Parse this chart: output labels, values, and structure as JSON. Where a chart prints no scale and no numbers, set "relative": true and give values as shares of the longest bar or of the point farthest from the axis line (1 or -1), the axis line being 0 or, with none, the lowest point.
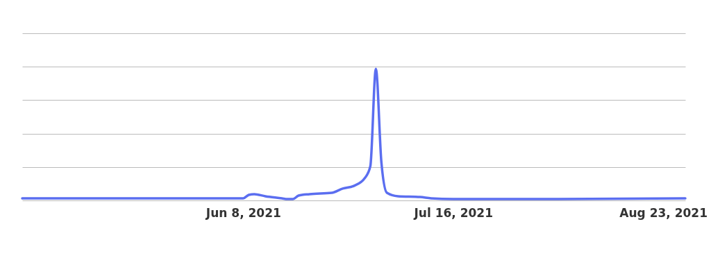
{
  "chart_data": {
    "type": "line",
    "relative": true,
    "grid": "y",
    "xlim": [
      "2021-04-29",
      "2021-08-27"
    ],
    "xticks": [
      {
        "value": "2021-06-08",
        "label": "Jun 8, 2021"
      },
      {
        "value": "2021-07-16",
        "label": "Jul 16, 2021"
      },
      {
        "value": "2021-08-23",
        "label": "Aug 23, 2021"
      }
    ],
    "x": [
      "2021-04-29",
      "2021-06-08",
      "2021-06-09",
      "2021-06-10",
      "2021-06-12",
      "2021-06-15",
      "2021-06-16",
      "2021-06-17",
      "2021-06-18",
      "2021-06-20",
      "2021-06-24",
      "2021-06-26",
      "2021-06-28",
      "2021-06-30",
      "2021-07-01",
      "2021-07-02",
      "2021-07-03",
      "2021-07-04",
      "2021-07-06",
      "2021-07-10",
      "2021-07-12",
      "2021-07-16",
      "2021-08-01",
      "2021-08-27"
    ],
    "series": [
      {
        "color": "#5b6ef0",
        "values": [
          0.016,
          0.016,
          0.042,
          0.048,
          0.032,
          0.016,
          0.01,
          0.01,
          0.037,
          0.048,
          0.058,
          0.09,
          0.11,
          0.17,
          0.26,
          1,
          0.29,
          0.058,
          0.032,
          0.026,
          0.016,
          0.01,
          0.01,
          0.016
        ]
      }
    ]
  }
}
